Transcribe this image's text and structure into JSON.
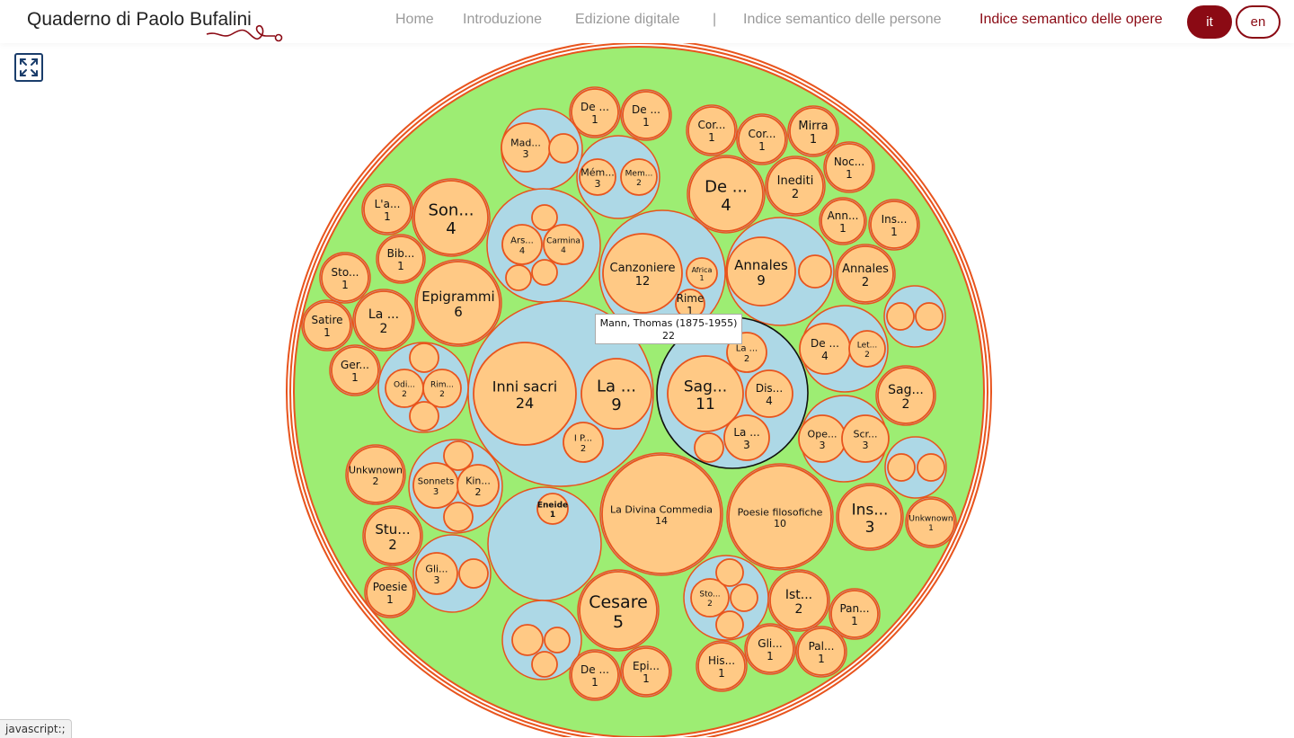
{
  "header": {
    "brand": "Quaderno di Paolo Bufalini",
    "nav": [
      {
        "label": "Home",
        "active": false
      },
      {
        "label": "Introduzione",
        "active": false
      },
      {
        "label": "Edizione digitale",
        "active": false
      },
      {
        "label": "|",
        "active": false
      },
      {
        "label": "Indice semantico delle persone",
        "active": false
      },
      {
        "label": "Indice semantico delle opere",
        "active": true
      }
    ],
    "languages": [
      {
        "label": "it",
        "selected": true
      },
      {
        "label": "en",
        "selected": false
      }
    ]
  },
  "toolbar": {
    "fullscreen_icon": "expand-arrows-icon"
  },
  "colors": {
    "accent": "#8b0a14",
    "root_fill": "#9ded73",
    "author_fill": "#add8e6",
    "work_fill": "#ffc985",
    "work_stroke": "#e8541d"
  },
  "tooltip": {
    "name": "Mann, Thomas (1875-1955)",
    "count": "22"
  },
  "status_bar": "javascript:;",
  "chart_data": {
    "type": "circle-packing",
    "authors": [
      {
        "works": [
          {
            "label": "De ...",
            "count": "1"
          }
        ]
      },
      {
        "works": [
          {
            "label": "De ...",
            "count": "1"
          }
        ]
      },
      {
        "works": [
          {
            "label": "Mad...",
            "count": "3"
          },
          {
            "label": "",
            "count": ""
          }
        ]
      },
      {
        "works": [
          {
            "label": "Mém...",
            "count": "3"
          },
          {
            "label": "Mem...",
            "count": "2"
          }
        ]
      },
      {
        "works": [
          {
            "label": "Cor...",
            "count": "1"
          }
        ]
      },
      {
        "works": [
          {
            "label": "Cor...",
            "count": "1"
          }
        ]
      },
      {
        "works": [
          {
            "label": "Mirra",
            "count": "1"
          }
        ]
      },
      {
        "works": [
          {
            "label": "De ...",
            "count": "4"
          }
        ]
      },
      {
        "works": [
          {
            "label": "Inediti",
            "count": "2"
          }
        ]
      },
      {
        "works": [
          {
            "label": "Noc...",
            "count": "1"
          }
        ]
      },
      {
        "works": [
          {
            "label": "L'a...",
            "count": "1"
          }
        ]
      },
      {
        "works": [
          {
            "label": "Son...",
            "count": "4"
          }
        ]
      },
      {
        "works": [
          {
            "label": "Ars...",
            "count": "4"
          },
          {
            "label": "Carmina",
            "count": "4"
          },
          {
            "label": "",
            "count": ""
          },
          {
            "label": "",
            "count": ""
          },
          {
            "label": "",
            "count": ""
          }
        ]
      },
      {
        "works": [
          {
            "label": "Canzoniere",
            "count": "12"
          },
          {
            "label": "Africa",
            "count": "1"
          },
          {
            "label": "Rime",
            "count": "1"
          }
        ]
      },
      {
        "works": [
          {
            "label": "Annales",
            "count": "9"
          },
          {
            "label": "",
            "count": ""
          }
        ]
      },
      {
        "works": [
          {
            "label": "Ann...",
            "count": "1"
          }
        ]
      },
      {
        "works": [
          {
            "label": "Ins...",
            "count": "1"
          }
        ]
      },
      {
        "works": [
          {
            "label": "Bib...",
            "count": "1"
          }
        ]
      },
      {
        "works": [
          {
            "label": "Sto...",
            "count": "1"
          }
        ]
      },
      {
        "works": [
          {
            "label": "Epigrammi",
            "count": "6"
          }
        ]
      },
      {
        "works": [
          {
            "label": "Annales",
            "count": "2"
          }
        ]
      },
      {
        "works": [
          {
            "label": "Satire",
            "count": "1"
          }
        ]
      },
      {
        "works": [
          {
            "label": "La ...",
            "count": "2"
          }
        ]
      },
      {
        "works": [
          {
            "label": "",
            "count": ""
          },
          {
            "label": "",
            "count": ""
          }
        ]
      },
      {
        "works": [
          {
            "label": "Ger...",
            "count": "1"
          }
        ]
      },
      {
        "works": [
          {
            "label": "Odi...",
            "count": "2"
          },
          {
            "label": "Rim...",
            "count": "2"
          },
          {
            "label": "",
            "count": ""
          },
          {
            "label": "",
            "count": ""
          }
        ]
      },
      {
        "works": [
          {
            "label": "Inni sacri",
            "count": "24"
          },
          {
            "label": "La ...",
            "count": "9"
          },
          {
            "label": "I P...",
            "count": "2"
          }
        ]
      },
      {
        "name": "Mann, Thomas (1875-1955)",
        "works": [
          {
            "label": "Sag...",
            "count": "11"
          },
          {
            "label": "La ...",
            "count": "2"
          },
          {
            "label": "Dis...",
            "count": "4"
          },
          {
            "label": "La ...",
            "count": "3"
          },
          {
            "label": "",
            "count": ""
          },
          {
            "label": "",
            "count": ""
          }
        ]
      },
      {
        "works": [
          {
            "label": "De ...",
            "count": "4"
          },
          {
            "label": "Let...",
            "count": "2"
          }
        ]
      },
      {
        "works": [
          {
            "label": "Sag...",
            "count": "2"
          }
        ]
      },
      {
        "works": [
          {
            "label": "Ope...",
            "count": "3"
          },
          {
            "label": "Scr...",
            "count": "3"
          }
        ]
      },
      {
        "works": [
          {
            "label": "",
            "count": ""
          },
          {
            "label": "",
            "count": ""
          }
        ]
      },
      {
        "works": [
          {
            "label": "Unkwnown",
            "count": "2"
          }
        ]
      },
      {
        "works": [
          {
            "label": "Sonnets",
            "count": "3"
          },
          {
            "label": "Kin...",
            "count": "2"
          },
          {
            "label": "",
            "count": ""
          },
          {
            "label": "",
            "count": ""
          }
        ]
      },
      {
        "works": [
          {
            "label": "Eneide",
            "count": "1"
          }
        ]
      },
      {
        "works": [
          {
            "label": "La Divina Commedia",
            "count": "14"
          }
        ]
      },
      {
        "works": [
          {
            "label": "Poesie filosofiche",
            "count": "10"
          }
        ]
      },
      {
        "works": [
          {
            "label": "Ins...",
            "count": "3"
          }
        ]
      },
      {
        "works": [
          {
            "label": "Unkwnown",
            "count": "1"
          }
        ]
      },
      {
        "works": [
          {
            "label": "Stu...",
            "count": "2"
          }
        ]
      },
      {
        "works": [
          {
            "label": "Gli...",
            "count": "3"
          },
          {
            "label": "",
            "count": ""
          }
        ]
      },
      {
        "works": [
          {
            "label": "Poesie",
            "count": "1"
          }
        ]
      },
      {
        "works": [
          {
            "label": "Cesare",
            "count": "5"
          }
        ]
      },
      {
        "works": [
          {
            "label": "Sto...",
            "count": "2"
          },
          {
            "label": "",
            "count": ""
          },
          {
            "label": "",
            "count": ""
          },
          {
            "label": "",
            "count": ""
          }
        ]
      },
      {
        "works": [
          {
            "label": "Ist...",
            "count": "2"
          }
        ]
      },
      {
        "works": [
          {
            "label": "Pan...",
            "count": "1"
          }
        ]
      },
      {
        "works": [
          {
            "label": "",
            "count": ""
          },
          {
            "label": "",
            "count": ""
          },
          {
            "label": "",
            "count": ""
          }
        ]
      },
      {
        "works": [
          {
            "label": "De ...",
            "count": "1"
          }
        ]
      },
      {
        "works": [
          {
            "label": "Epi...",
            "count": "1"
          }
        ]
      },
      {
        "works": [
          {
            "label": "Gli...",
            "count": "1"
          }
        ]
      },
      {
        "works": [
          {
            "label": "Pal...",
            "count": "1"
          }
        ]
      },
      {
        "works": [
          {
            "label": "His...",
            "count": "1"
          }
        ]
      }
    ]
  }
}
